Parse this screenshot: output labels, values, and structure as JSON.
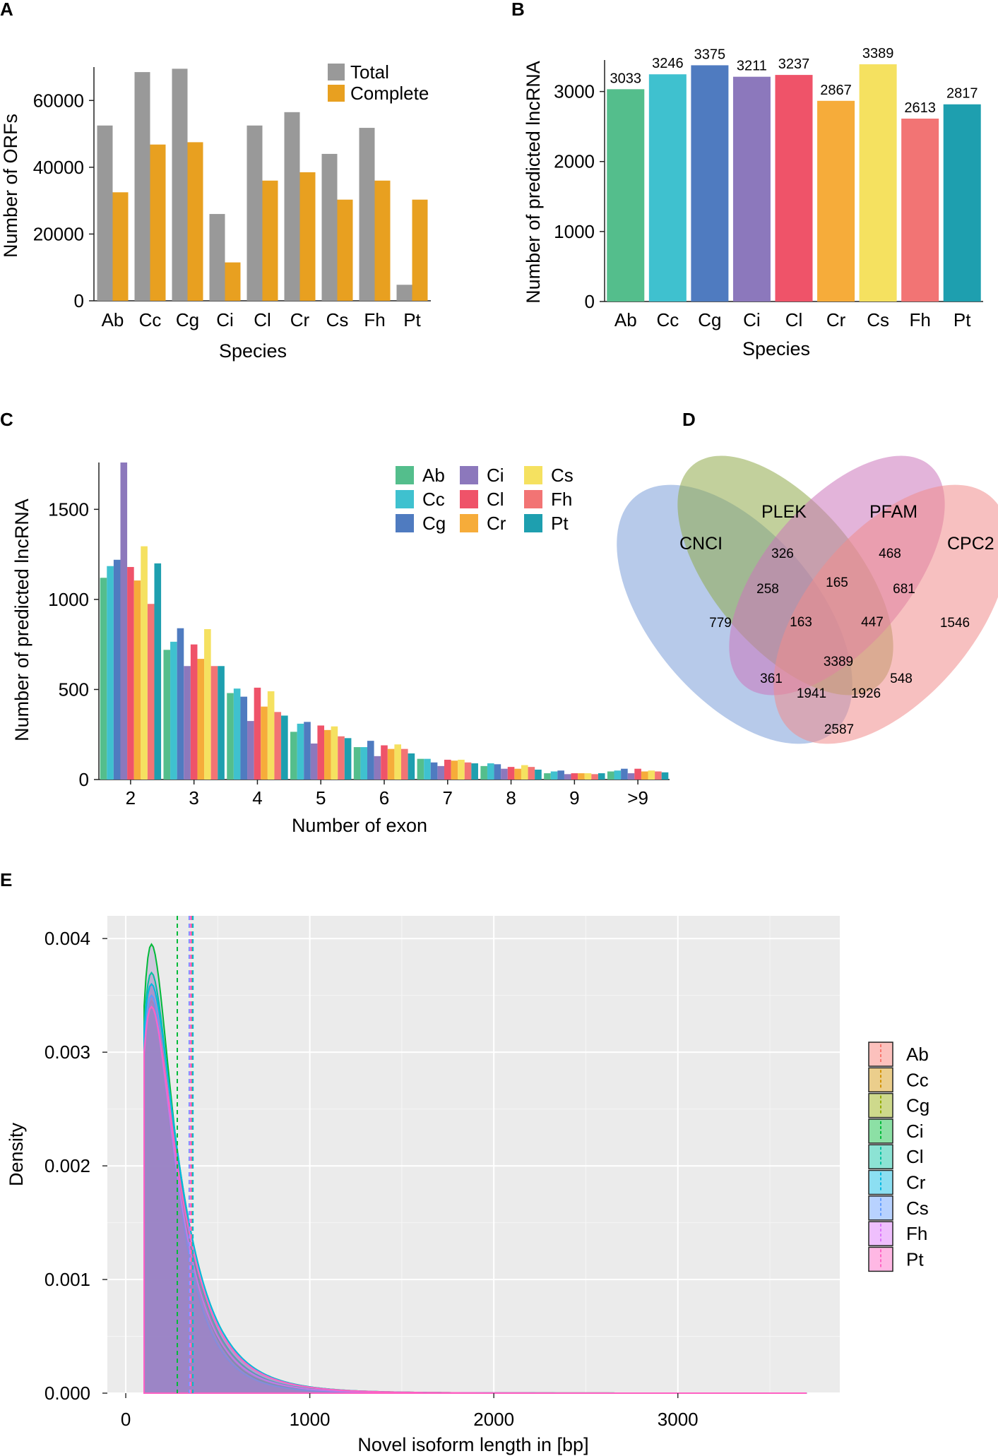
{
  "panel_labels": [
    "A",
    "B",
    "C",
    "D",
    "E"
  ],
  "chart_data": [
    {
      "id": "A",
      "type": "bar",
      "categories": [
        "Ab",
        "Cc",
        "Cg",
        "Ci",
        "Cl",
        "Cr",
        "Cs",
        "Fh",
        "Pt"
      ],
      "series": [
        {
          "name": "Total",
          "color": "#999999",
          "values": [
            52500,
            68500,
            69500,
            26000,
            52500,
            56500,
            44000,
            51800,
            4800
          ]
        },
        {
          "name": "Complete",
          "color": "#E8A020",
          "values": [
            32500,
            46800,
            47500,
            11500,
            36000,
            38500,
            30300,
            36000,
            30300
          ]
        }
      ],
      "xlabel": "Species",
      "ylabel": "Number of ORFs",
      "ylim": [
        0,
        70000
      ],
      "yticks": [
        0,
        20000,
        40000,
        60000
      ],
      "legend_pos": "top-right"
    },
    {
      "id": "B",
      "type": "bar",
      "categories": [
        "Ab",
        "Cc",
        "Cg",
        "Ci",
        "Cl",
        "Cr",
        "Cs",
        "Fh",
        "Pt"
      ],
      "values": [
        3033,
        3246,
        3375,
        3211,
        3237,
        2867,
        3389,
        2613,
        2817
      ],
      "value_labels": [
        "3033",
        "3246",
        "3375",
        "3211",
        "3237",
        "2867",
        "3389",
        "2613",
        "2817"
      ],
      "colors": [
        "#54BE8C",
        "#3FC1CF",
        "#4F7BC0",
        "#8C78BC",
        "#EF5369",
        "#F6AC3A",
        "#F5E160",
        "#F27474",
        "#1E9FAF"
      ],
      "xlabel": "Species",
      "ylabel": "Number of predicted lncRNA",
      "ylim": [
        0,
        3450
      ],
      "yticks": [
        0,
        1000,
        2000,
        3000
      ]
    },
    {
      "id": "C",
      "type": "bar",
      "categories": [
        "2",
        "3",
        "4",
        "5",
        "6",
        "7",
        "8",
        "9",
        ">9"
      ],
      "series": [
        {
          "name": "Ab",
          "color": "#54BE8C",
          "values": [
            1120,
            720,
            480,
            265,
            180,
            115,
            75,
            35,
            45
          ]
        },
        {
          "name": "Cc",
          "color": "#3FC1CF",
          "values": [
            1185,
            765,
            505,
            310,
            180,
            115,
            90,
            45,
            50
          ]
        },
        {
          "name": "Cg",
          "color": "#4F7BC0",
          "values": [
            1220,
            840,
            460,
            320,
            215,
            95,
            85,
            50,
            60
          ]
        },
        {
          "name": "Ci",
          "color": "#8C78BC",
          "values": [
            1760,
            630,
            325,
            200,
            130,
            75,
            60,
            30,
            35
          ]
        },
        {
          "name": "Cl",
          "color": "#EF5369",
          "values": [
            1180,
            750,
            510,
            300,
            190,
            110,
            70,
            35,
            60
          ]
        },
        {
          "name": "Cr",
          "color": "#F6AC3A",
          "values": [
            1105,
            670,
            405,
            275,
            170,
            105,
            60,
            35,
            45
          ]
        },
        {
          "name": "Cs",
          "color": "#F5E160",
          "values": [
            1295,
            835,
            490,
            295,
            195,
            110,
            80,
            35,
            50
          ]
        },
        {
          "name": "Fh",
          "color": "#F27474",
          "values": [
            975,
            630,
            375,
            240,
            170,
            95,
            70,
            30,
            45
          ]
        },
        {
          "name": "Pt",
          "color": "#1E9FAF",
          "values": [
            1200,
            630,
            355,
            230,
            145,
            90,
            55,
            35,
            40
          ]
        }
      ],
      "xlabel": "Number of exon",
      "ylabel": "Number of predicted lncRNA",
      "ylim": [
        0,
        1760
      ],
      "yticks": [
        0,
        500,
        1000,
        1500
      ],
      "legend_pos": "top-right"
    },
    {
      "id": "D",
      "type": "venn",
      "sets": [
        {
          "name": "CNCI",
          "color": "#7C9ED8"
        },
        {
          "name": "PLEK",
          "color": "#8FAA4A"
        },
        {
          "name": "PFAM",
          "color": "#CC77BB"
        },
        {
          "name": "CPC2",
          "color": "#F08C8C"
        }
      ],
      "regions": [
        {
          "sets": "CNCI",
          "value": "779"
        },
        {
          "sets": "PLEK",
          "value": "326"
        },
        {
          "sets": "PFAM",
          "value": "468"
        },
        {
          "sets": "CPC2",
          "value": "1546"
        },
        {
          "sets": "CNCI&PLEK",
          "value": "258"
        },
        {
          "sets": "PLEK&PFAM",
          "value": "165"
        },
        {
          "sets": "PFAM&CPC2",
          "value": "681"
        },
        {
          "sets": "CNCI&PLEK&PFAM",
          "value": "163"
        },
        {
          "sets": "PLEK&PFAM&CPC2",
          "value": "447"
        },
        {
          "sets": "ALL",
          "value": "3389"
        },
        {
          "sets": "CNCI&PFAM",
          "value": "361"
        },
        {
          "sets": "CNCI&PFAM&CPC2",
          "value": "1941"
        },
        {
          "sets": "CNCI&PLEK&CPC2",
          "value": "1926"
        },
        {
          "sets": "PLEK&CPC2",
          "value": "548"
        },
        {
          "sets": "CNCI&CPC2",
          "value": "2587"
        }
      ]
    },
    {
      "id": "E",
      "type": "area",
      "xlabel": "Novel isoform length in [bp]",
      "ylabel": "Density",
      "xlim": [
        -100,
        3880
      ],
      "ylim": [
        0,
        0.0042
      ],
      "xticks": [
        0,
        1000,
        2000,
        3000
      ],
      "xtick_labels": [
        "0",
        "1000",
        "2000",
        "3000"
      ],
      "yticks": [
        0,
        0.001,
        0.002,
        0.003,
        0.004
      ],
      "ytick_labels": [
        "0.000",
        "0.001",
        "0.002",
        "0.003",
        "0.004"
      ],
      "series": [
        {
          "name": "Ab",
          "color": "#F8766D",
          "peak": 0.00345,
          "mean": 355
        },
        {
          "name": "Cc",
          "color": "#D39200",
          "peak": 0.0035,
          "mean": 360
        },
        {
          "name": "Cg",
          "color": "#93AA00",
          "peak": 0.0036,
          "mean": 362
        },
        {
          "name": "Ci",
          "color": "#00BA38",
          "peak": 0.00395,
          "mean": 280
        },
        {
          "name": "Cl",
          "color": "#00C19F",
          "peak": 0.0037,
          "mean": 350
        },
        {
          "name": "Cr",
          "color": "#00B9E3",
          "peak": 0.0036,
          "mean": 365
        },
        {
          "name": "Cs",
          "color": "#619CFF",
          "peak": 0.0035,
          "mean": 345
        },
        {
          "name": "Fh",
          "color": "#DB72FB",
          "peak": 0.0034,
          "mean": 350
        },
        {
          "name": "Pt",
          "color": "#FF61C3",
          "peak": 0.0034,
          "mean": 355
        }
      ],
      "legend_pos": "right",
      "fill_color": "#9B84C6"
    }
  ]
}
